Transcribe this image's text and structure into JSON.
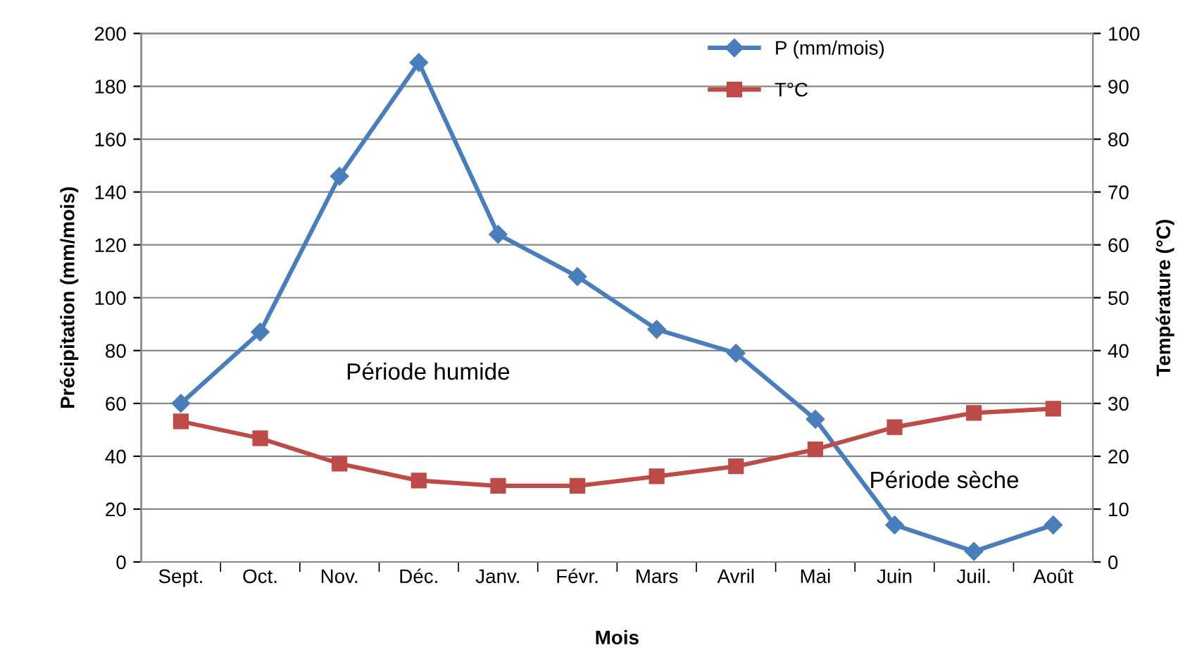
{
  "chart_data": {
    "type": "line",
    "xlabel": "Mois",
    "ylabel": "Précipitation (mm/mois)",
    "y2label": "Température (°C)",
    "categories": [
      "Sept.",
      "Oct.",
      "Nov.",
      "Déc.",
      "Janv.",
      "Févr.",
      "Mars",
      "Avril",
      "Mai",
      "Juin",
      "Juil.",
      "Août"
    ],
    "series": [
      {
        "name": "P (mm/mois)",
        "color": "#4a7ebb",
        "marker": "diamond",
        "values": [
          60,
          87,
          146,
          189,
          124,
          108,
          88,
          79,
          54,
          14,
          4,
          14
        ]
      },
      {
        "name": "T°C",
        "color": "#be4b48",
        "marker": "square",
        "axis": "y2",
        "values": [
          26.6,
          23.4,
          18.6,
          15.4,
          14.4,
          14.4,
          16.2,
          18.1,
          21.3,
          25.5,
          28.2,
          29
        ]
      }
    ],
    "ylim": [
      0,
      200
    ],
    "yticks": [
      0,
      20,
      40,
      60,
      80,
      100,
      120,
      140,
      160,
      180,
      200
    ],
    "y2lim": [
      0,
      100
    ],
    "y2ticks": [
      0,
      10,
      20,
      30,
      40,
      50,
      60,
      70,
      80,
      90,
      100
    ],
    "grid": "y",
    "legend": "top right",
    "line_style": "solid",
    "annotations": [
      "Période humide",
      "Période sèche"
    ]
  }
}
